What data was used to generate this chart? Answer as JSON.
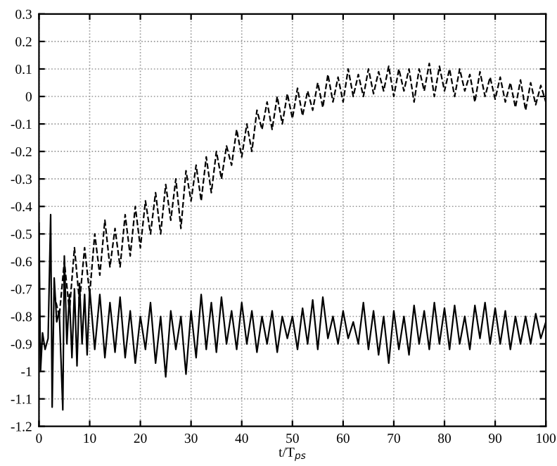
{
  "chart_data": {
    "type": "line",
    "xlabel": "t/T$_{ps}$",
    "xlim": [
      0,
      100
    ],
    "xticks": [
      0,
      10,
      20,
      30,
      40,
      50,
      60,
      70,
      80,
      90,
      100
    ],
    "ylim": [
      -1.2,
      0.3
    ],
    "yticks": [
      -1.2,
      -1.1,
      -1,
      -0.9,
      -0.8,
      -0.7,
      -0.6,
      -0.5,
      -0.4,
      -0.3,
      -0.2,
      -0.1,
      0,
      0.1,
      0.2,
      0.3
    ],
    "grid": true,
    "marker": "none",
    "series": [
      {
        "color": "#000000",
        "line_style": "solid",
        "x": [
          0,
          0.3,
          0.7,
          1.2,
          1.8,
          2.3,
          2.6,
          3,
          3.5,
          4,
          4.7,
          5,
          5.5,
          6,
          6.5,
          7,
          7.5,
          8,
          8.5,
          9,
          9.5,
          10,
          11,
          12,
          13,
          14,
          15,
          16,
          17,
          18,
          19,
          20,
          21,
          22,
          23,
          24,
          25,
          26,
          27,
          28,
          29,
          30,
          31,
          32,
          33,
          34,
          35,
          36,
          37,
          38,
          39,
          40,
          41,
          42,
          43,
          44,
          45,
          46,
          47,
          48,
          49,
          50,
          51,
          52,
          53,
          54,
          55,
          56,
          57,
          58,
          59,
          60,
          61,
          62,
          63,
          64,
          65,
          66,
          67,
          68,
          69,
          70,
          71,
          72,
          73,
          74,
          75,
          76,
          77,
          78,
          79,
          80,
          81,
          82,
          83,
          84,
          85,
          86,
          87,
          88,
          89,
          90,
          91,
          92,
          93,
          94,
          95,
          96,
          97,
          98,
          99,
          100
        ],
        "values": [
          -0.46,
          -1.0,
          -0.86,
          -0.92,
          -0.88,
          -0.43,
          -1.13,
          -0.66,
          -0.82,
          -0.78,
          -1.14,
          -0.58,
          -0.9,
          -0.72,
          -0.95,
          -0.7,
          -0.98,
          -0.68,
          -0.9,
          -0.72,
          -0.94,
          -0.7,
          -0.92,
          -0.72,
          -0.95,
          -0.75,
          -0.93,
          -0.73,
          -0.95,
          -0.78,
          -0.97,
          -0.8,
          -0.92,
          -0.75,
          -0.97,
          -0.8,
          -1.02,
          -0.78,
          -0.92,
          -0.8,
          -1.01,
          -0.78,
          -0.95,
          -0.72,
          -0.92,
          -0.75,
          -0.93,
          -0.73,
          -0.9,
          -0.78,
          -0.92,
          -0.75,
          -0.9,
          -0.78,
          -0.93,
          -0.8,
          -0.9,
          -0.78,
          -0.93,
          -0.8,
          -0.88,
          -0.8,
          -0.92,
          -0.77,
          -0.9,
          -0.74,
          -0.92,
          -0.73,
          -0.88,
          -0.8,
          -0.9,
          -0.78,
          -0.88,
          -0.82,
          -0.9,
          -0.75,
          -0.92,
          -0.78,
          -0.94,
          -0.8,
          -0.97,
          -0.78,
          -0.92,
          -0.8,
          -0.94,
          -0.76,
          -0.9,
          -0.78,
          -0.92,
          -0.75,
          -0.9,
          -0.77,
          -0.92,
          -0.76,
          -0.9,
          -0.8,
          -0.92,
          -0.76,
          -0.88,
          -0.75,
          -0.9,
          -0.77,
          -0.9,
          -0.78,
          -0.92,
          -0.8,
          -0.9,
          -0.8,
          -0.9,
          -0.79,
          -0.88,
          -0.82
        ]
      },
      {
        "color": "#000000",
        "line_style": "dashed",
        "x": [
          3,
          4,
          5,
          6,
          7,
          8,
          9,
          10,
          11,
          12,
          13,
          14,
          15,
          16,
          17,
          18,
          19,
          20,
          21,
          22,
          23,
          24,
          25,
          26,
          27,
          28,
          29,
          30,
          31,
          32,
          33,
          34,
          35,
          36,
          37,
          38,
          39,
          40,
          41,
          42,
          43,
          44,
          45,
          46,
          47,
          48,
          49,
          50,
          51,
          52,
          53,
          54,
          55,
          56,
          57,
          58,
          59,
          60,
          61,
          62,
          63,
          64,
          65,
          66,
          67,
          68,
          69,
          70,
          71,
          72,
          73,
          74,
          75,
          76,
          77,
          78,
          79,
          80,
          81,
          82,
          83,
          84,
          85,
          86,
          87,
          88,
          89,
          90,
          91,
          92,
          93,
          94,
          95,
          96,
          97,
          98,
          99,
          100
        ],
        "values": [
          -0.72,
          -0.8,
          -0.6,
          -0.78,
          -0.55,
          -0.75,
          -0.55,
          -0.72,
          -0.5,
          -0.65,
          -0.45,
          -0.62,
          -0.48,
          -0.62,
          -0.43,
          -0.58,
          -0.4,
          -0.55,
          -0.38,
          -0.5,
          -0.35,
          -0.5,
          -0.32,
          -0.45,
          -0.3,
          -0.48,
          -0.27,
          -0.38,
          -0.25,
          -0.38,
          -0.22,
          -0.35,
          -0.2,
          -0.3,
          -0.18,
          -0.25,
          -0.12,
          -0.22,
          -0.1,
          -0.2,
          -0.05,
          -0.12,
          -0.02,
          -0.12,
          0.0,
          -0.1,
          0.01,
          -0.08,
          0.03,
          -0.07,
          0.02,
          -0.05,
          0.05,
          -0.04,
          0.08,
          -0.02,
          0.07,
          -0.02,
          0.1,
          0.0,
          0.08,
          0.0,
          0.1,
          0.01,
          0.09,
          0.02,
          0.11,
          0.0,
          0.1,
          0.02,
          0.1,
          -0.02,
          0.1,
          0.02,
          0.12,
          0.0,
          0.11,
          0.02,
          0.1,
          0.0,
          0.1,
          0.02,
          0.08,
          -0.02,
          0.09,
          0.0,
          0.07,
          -0.01,
          0.07,
          -0.02,
          0.05,
          -0.04,
          0.06,
          -0.05,
          0.05,
          -0.03,
          0.04,
          -0.02
        ]
      }
    ]
  }
}
